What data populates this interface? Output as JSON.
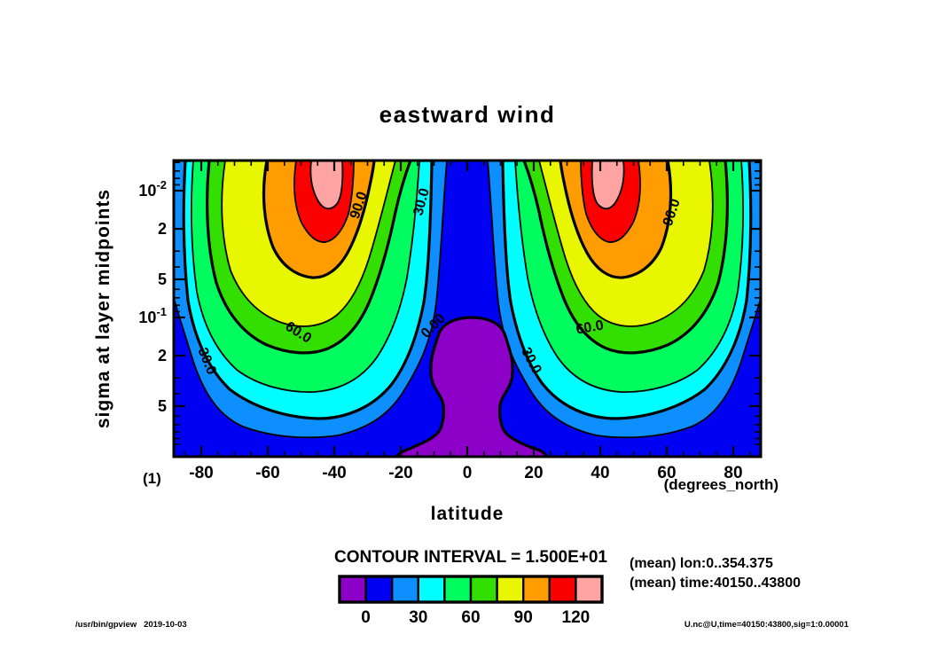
{
  "title": "eastward wind",
  "axes": {
    "x": {
      "label": "latitude",
      "unit": "(degrees_north)",
      "corner_tag": "(1)",
      "tick_labels": [
        "-80",
        "-60",
        "-40",
        "-20",
        "0",
        "20",
        "40",
        "60",
        "80"
      ],
      "tick_values": [
        -80,
        -60,
        -40,
        -20,
        0,
        20,
        40,
        60,
        80
      ],
      "minor_step": 5,
      "range": [
        -88,
        88
      ]
    },
    "y": {
      "label": "sigma at layer midpoints",
      "scale": "log",
      "tick_labels": [
        {
          "base": "10",
          "exp": "-2",
          "value": 0.01
        },
        {
          "base": "2",
          "value": 0.02
        },
        {
          "base": "5",
          "value": 0.05
        },
        {
          "base": "10",
          "exp": "-1",
          "value": 0.1
        },
        {
          "base": "2",
          "value": 0.2
        },
        {
          "base": "5",
          "value": 0.5
        }
      ],
      "minor_values": [
        0.006,
        0.007,
        0.008,
        0.009,
        0.03,
        0.04,
        0.06,
        0.07,
        0.08,
        0.09,
        0.3,
        0.4,
        0.6,
        0.7,
        0.8,
        0.9,
        1.0
      ]
    }
  },
  "contour": {
    "interval_text": "CONTOUR INTERVAL =  1.500E+01",
    "inline_labels": [
      "90.0",
      "30.0",
      "60.0",
      "30.0",
      "0.00",
      "90.0",
      "60.0",
      "30.0"
    ]
  },
  "colorbar": {
    "colors": [
      "#8C00C7",
      "#0000F2",
      "#0E8FFF",
      "#00FFFF",
      "#00FC5F",
      "#33DF00",
      "#E8F700",
      "#FF9D00",
      "#FB0000",
      "#FFA3A3"
    ],
    "tick_labels": [
      "0",
      "30",
      "60",
      "90",
      "120"
    ]
  },
  "annotations": {
    "mean_lon": "(mean) lon:0..354.375",
    "mean_time": "(mean) time:40150..43800"
  },
  "footer": {
    "left": "/usr/bin/gpview   2019-10-03",
    "right": "U.nc@U,time=40150:43800,sig=1:0.00001"
  },
  "chart_data": {
    "type": "filled_contour",
    "title": "eastward wind",
    "xlabel": "latitude",
    "x_unit": "degrees_north",
    "ylabel": "sigma at layer midpoints",
    "y_scale": "log",
    "x_range": [
      -88,
      88
    ],
    "x_ticks": [
      -80,
      -60,
      -40,
      -20,
      0,
      20,
      40,
      60,
      80
    ],
    "y_ticks_sigma": [
      0.01,
      0.02,
      0.05,
      0.1,
      0.2,
      0.5
    ],
    "y_range_sigma": [
      0.0058,
      1.2
    ],
    "contour_interval": 15,
    "contour_levels": [
      0,
      15,
      30,
      45,
      60,
      75,
      90,
      105,
      120
    ],
    "labeled_contour_levels": [
      0,
      30,
      60,
      90
    ],
    "band_value_ranges": [
      "<0",
      "0-15",
      "15-30",
      "30-45",
      "45-60",
      "60-75",
      "75-90",
      "90-105",
      "105-120",
      ">120"
    ],
    "band_colors": [
      "#8C00C7",
      "#0000F2",
      "#0E8FFF",
      "#00FFFF",
      "#00FC5F",
      "#33DF00",
      "#E8F700",
      "#FF9D00",
      "#FB0000",
      "#FFA3A3"
    ],
    "features": [
      {
        "feature": "westerly jet maximum (pink core)",
        "latitude": -42,
        "sigma": 0.006,
        "value": ">120"
      },
      {
        "feature": "westerly jet maximum (pink core)",
        "latitude": 42,
        "sigma": 0.006,
        "value": ">120"
      },
      {
        "feature": "equatorial easterlies (purple region)",
        "latitude": 0,
        "sigma": "0.3 to 1.0",
        "value": "<0"
      }
    ],
    "statistics": {
      "mean_over_lon": "0..354.375",
      "mean_over_time": "40150..43800"
    }
  }
}
